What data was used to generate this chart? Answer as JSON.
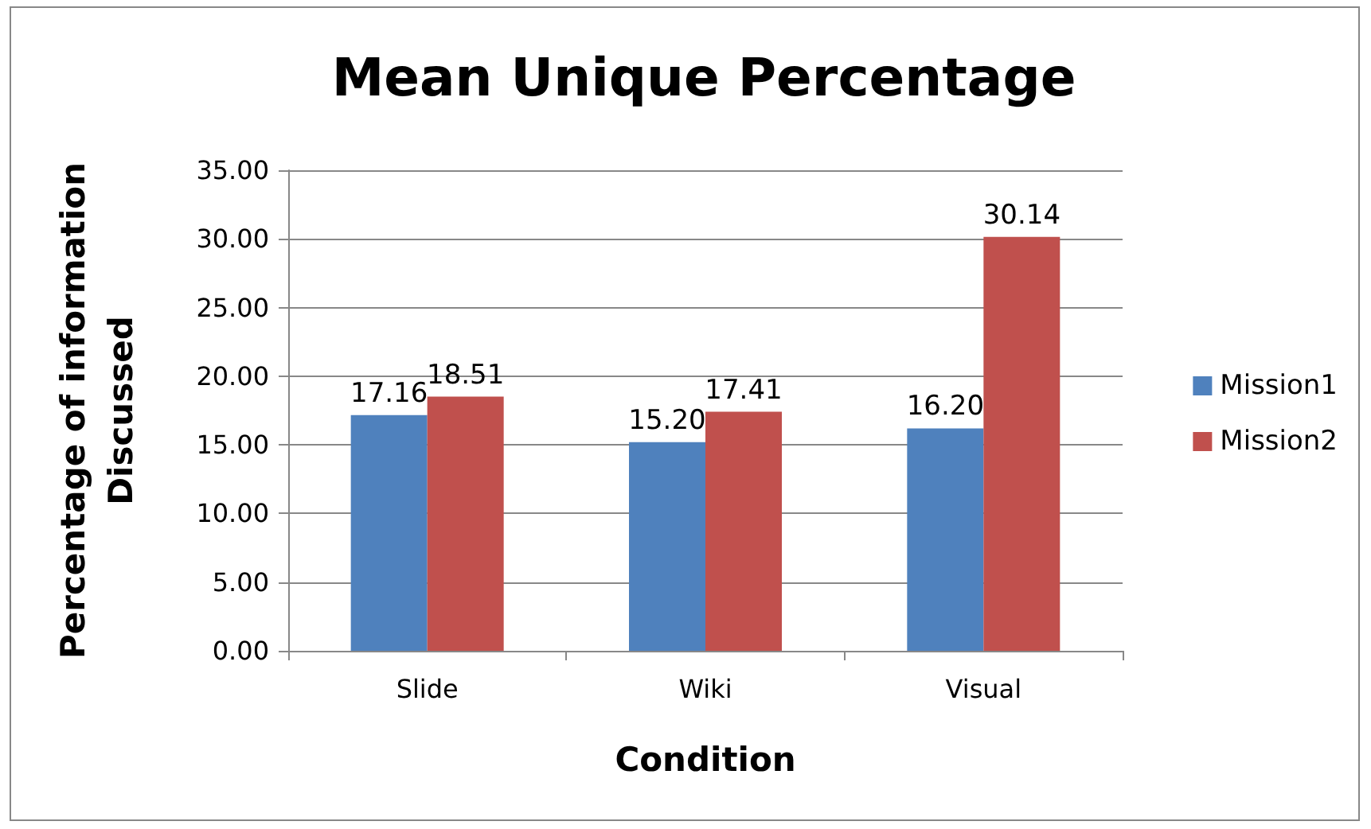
{
  "chart_data": {
    "type": "bar",
    "title": "Mean Unique Percentage",
    "xlabel": "Condition",
    "ylabel": "Percentage of information\nDiscussed",
    "categories": [
      "Slide",
      "Wiki",
      "Visual"
    ],
    "series": [
      {
        "name": "Mission1",
        "color": "#4f81bd",
        "values": [
          17.16,
          15.2,
          16.2
        ],
        "value_labels": [
          "17.16",
          "15.20",
          "16.20"
        ]
      },
      {
        "name": "Mission2",
        "color": "#c0504d",
        "values": [
          18.51,
          17.41,
          30.14
        ],
        "value_labels": [
          "18.51",
          "17.41",
          "30.14"
        ]
      }
    ],
    "ylim": [
      0,
      35
    ],
    "yticks": [
      {
        "value": 0,
        "label": "0.00"
      },
      {
        "value": 5,
        "label": "5.00"
      },
      {
        "value": 10,
        "label": "10.00"
      },
      {
        "value": 15,
        "label": "15.00"
      },
      {
        "value": 20,
        "label": "20.00"
      },
      {
        "value": 25,
        "label": "25.00"
      },
      {
        "value": 30,
        "label": "30.00"
      },
      {
        "value": 35,
        "label": "35.00"
      }
    ],
    "grid": "y",
    "legend": "right"
  }
}
